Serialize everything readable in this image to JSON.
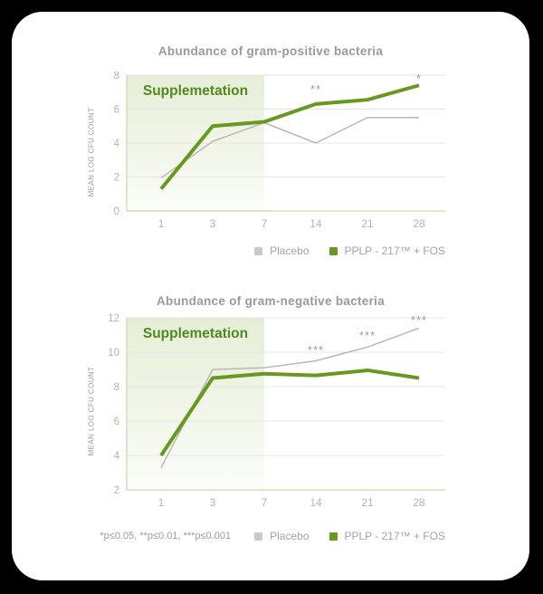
{
  "legend": {
    "placebo": "Placebo",
    "product": "PPLP - 217™ + FOS"
  },
  "footnote": "*p≤0.05, **p≤0.01, ***p≤0.001",
  "colors": {
    "page_bg": "#000000",
    "card_bg": "#ffffff",
    "product_green": "#67981f",
    "placebo_line": "#b8b8b8",
    "placebo_swatch": "#c9c9c9",
    "region_label_green": "#4e8a1e",
    "shade_top": "#e6eed7",
    "shade_bottom": "#fbfdf8",
    "gridline": "#e4e4e4",
    "axis_green": "#bdd398",
    "title_text": "#9a9a9a",
    "tick_text": "#b3b3b3",
    "annotation_text": "#9c9c9c",
    "footnote_text": "#9b9b9b",
    "legend_text": "#a3a3a3"
  },
  "chart_data": [
    {
      "type": "line",
      "title": "Abundance of gram-positive bacteria",
      "ylabel": "MEAN LOG CFU COUNT",
      "xlabel": "",
      "region_label": "Supplemetation",
      "x_categories": [
        "1",
        "3",
        "7",
        "14",
        "21",
        "28"
      ],
      "y_ticks": [
        0,
        2,
        4,
        6,
        8
      ],
      "ylim": [
        0,
        8
      ],
      "grid": true,
      "shade_end_index": 2,
      "legend_position": "bottom-right",
      "series": [
        {
          "name": "Placebo",
          "color_key": "placebo",
          "values": [
            1.95,
            4.1,
            5.2,
            4.0,
            5.5,
            5.5
          ]
        },
        {
          "name": "PPLP - 217™ + FOS",
          "color_key": "product",
          "values": [
            1.3,
            5.0,
            5.25,
            6.3,
            6.55,
            7.4
          ]
        }
      ],
      "annotations": [
        {
          "x_index": 3,
          "value": 7.15,
          "text": "**"
        },
        {
          "x_index": 5,
          "value": 7.8,
          "text": "*"
        }
      ]
    },
    {
      "type": "line",
      "title": "Abundance of gram-negative bacteria",
      "ylabel": "MEAN LOG CFU COUNT",
      "xlabel": "",
      "region_label": "Supplemetation",
      "x_categories": [
        "1",
        "3",
        "7",
        "14",
        "21",
        "28"
      ],
      "y_ticks": [
        2,
        4,
        6,
        8,
        10,
        12
      ],
      "ylim": [
        2,
        12
      ],
      "grid": true,
      "shade_end_index": 2,
      "legend_position": "bottom-right",
      "series": [
        {
          "name": "Placebo",
          "color_key": "placebo",
          "values": [
            3.3,
            9.0,
            9.1,
            9.5,
            10.3,
            11.4
          ]
        },
        {
          "name": "PPLP - 217™ + FOS",
          "color_key": "product",
          "values": [
            4.0,
            8.5,
            8.75,
            8.65,
            8.95,
            8.5
          ]
        }
      ],
      "annotations": [
        {
          "x_index": 3,
          "value": 10.1,
          "text": "***"
        },
        {
          "x_index": 4,
          "value": 10.95,
          "text": "***"
        },
        {
          "x_index": 5,
          "value": 11.85,
          "text": "***"
        }
      ]
    }
  ]
}
